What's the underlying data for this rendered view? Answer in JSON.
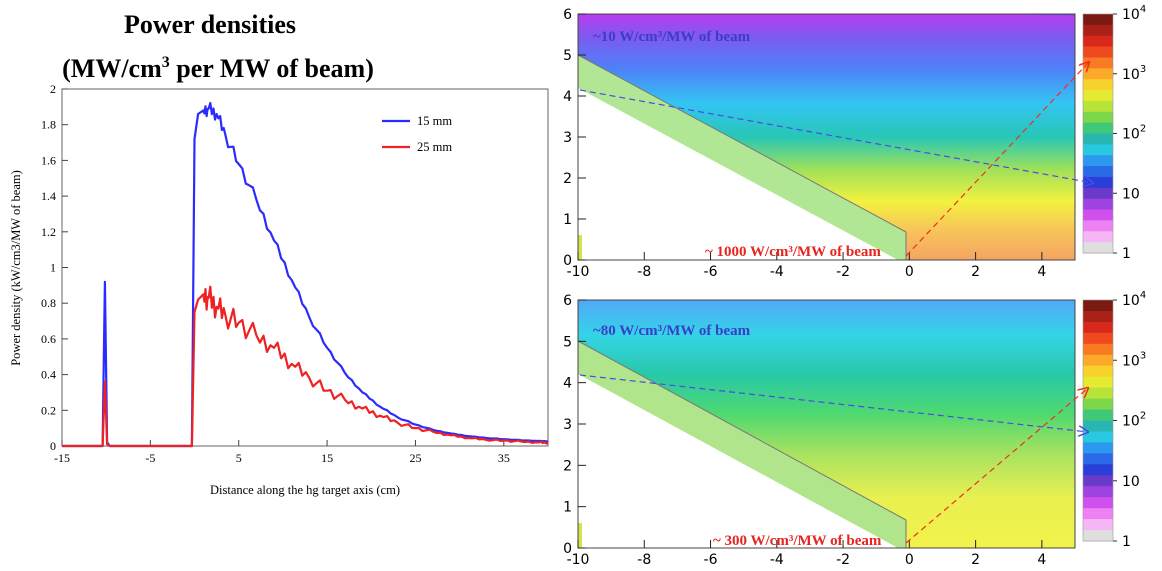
{
  "title": {
    "line1": "Power densities",
    "line2_pre": "(MW/cm",
    "line2_sup": "3",
    "line2_post": " per MW of beam)"
  },
  "colors": {
    "series_15mm": "#2b2bff",
    "series_25mm": "#ee2222",
    "annotation_blue": "#3c3cc8",
    "annotation_red": "#e8241e"
  },
  "chart_data": [
    {
      "type": "line",
      "xlabel": "Distance along the hg target axis (cm)",
      "ylabel": "Power density (kW/cm3/MW of beam)",
      "xlim": [
        -15,
        40
      ],
      "ylim": [
        0,
        2
      ],
      "x_ticks": [
        "-15",
        "-5",
        "5",
        "15",
        "25",
        "35"
      ],
      "y_ticks": [
        "0",
        "0.2",
        "0.4",
        "0.6",
        "0.8",
        "1",
        "1.2",
        "1.4",
        "1.6",
        "1.8",
        "2"
      ],
      "grid": false,
      "legend_position": "top-right",
      "series": [
        {
          "name": "15 mm",
          "x": [
            -15,
            -10.4,
            -10.15,
            -9.9,
            -9.6,
            -0.3,
            0.0,
            0.4,
            1.0,
            1.6,
            2.5,
            3.5,
            5,
            7,
            9,
            11,
            13,
            15,
            17,
            19,
            21,
            23,
            25,
            27,
            29,
            31,
            33,
            35,
            37,
            39,
            40
          ],
          "y": [
            0,
            0,
            0.92,
            0.02,
            0,
            0,
            1.72,
            1.86,
            1.88,
            1.89,
            1.86,
            1.74,
            1.58,
            1.38,
            1.15,
            0.93,
            0.72,
            0.55,
            0.41,
            0.3,
            0.22,
            0.16,
            0.12,
            0.09,
            0.07,
            0.055,
            0.045,
            0.038,
            0.032,
            0.028,
            0.026
          ]
        },
        {
          "name": "25 mm",
          "x": [
            -15,
            -10.4,
            -10.15,
            -9.9,
            -9.6,
            -0.3,
            0.0,
            0.4,
            1.0,
            1.6,
            2.5,
            3.5,
            5,
            7,
            9,
            11,
            13,
            15,
            17,
            19,
            21,
            23,
            25,
            27,
            29,
            31,
            33,
            35,
            37,
            39,
            40
          ],
          "y": [
            0,
            0,
            0.36,
            0.01,
            0,
            0,
            0.75,
            0.82,
            0.85,
            0.83,
            0.78,
            0.73,
            0.69,
            0.62,
            0.55,
            0.46,
            0.38,
            0.31,
            0.26,
            0.21,
            0.17,
            0.13,
            0.1,
            0.08,
            0.06,
            0.045,
            0.035,
            0.03,
            0.025,
            0.02,
            0.018
          ]
        }
      ]
    },
    {
      "type": "heatmap",
      "xlim": [
        -10,
        5
      ],
      "ylim": [
        0,
        6
      ],
      "x_ticks": [
        "-10",
        "-8",
        "-6",
        "-4",
        "-2",
        "0",
        "2",
        "4"
      ],
      "y_ticks": [
        "0",
        "1",
        "2",
        "3",
        "4",
        "5",
        "6"
      ],
      "colorbar_scale": "log",
      "colorbar_range": [
        1,
        10000
      ],
      "colorbar_ticks": [
        {
          "base": "1",
          "exp": ""
        },
        {
          "base": "10",
          "exp": ""
        },
        {
          "base": "10",
          "exp": "2"
        },
        {
          "base": "10",
          "exp": "3"
        },
        {
          "base": "10",
          "exp": "4"
        }
      ],
      "annotations": [
        {
          "text": "~10 W/cm³/MW of beam",
          "color": "blue"
        },
        {
          "text": "~ 1000 W/cm³/MW of beam",
          "color": "red"
        }
      ]
    },
    {
      "type": "heatmap",
      "xlim": [
        -10,
        5
      ],
      "ylim": [
        0,
        6
      ],
      "x_ticks": [
        "-10",
        "-8",
        "-6",
        "-4",
        "-2",
        "0",
        "2",
        "4"
      ],
      "y_ticks": [
        "0",
        "1",
        "2",
        "3",
        "4",
        "5",
        "6"
      ],
      "colorbar_scale": "log",
      "colorbar_range": [
        1,
        10000
      ],
      "colorbar_ticks": [
        {
          "base": "1",
          "exp": ""
        },
        {
          "base": "10",
          "exp": ""
        },
        {
          "base": "10",
          "exp": "2"
        },
        {
          "base": "10",
          "exp": "3"
        },
        {
          "base": "10",
          "exp": "4"
        }
      ],
      "annotations": [
        {
          "text": "~80 W/cm³/MW of beam",
          "color": "blue"
        },
        {
          "text": "~ 300 W/cm³/MW of beam",
          "color": "red"
        }
      ]
    }
  ]
}
